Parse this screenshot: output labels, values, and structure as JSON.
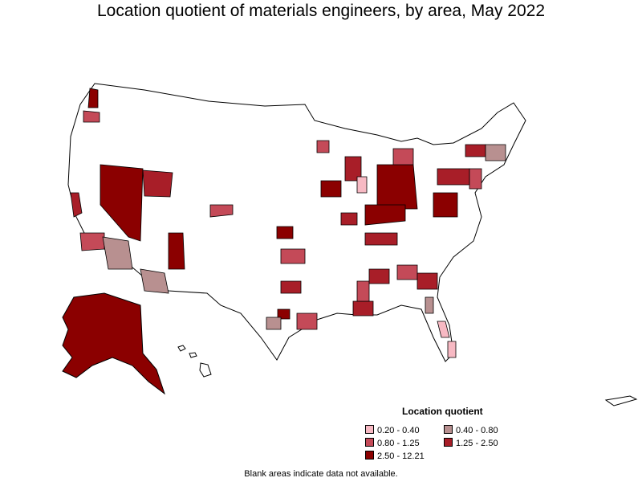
{
  "title": "Location quotient of materials engineers, by area, May 2022",
  "legend": {
    "title": "Location quotient",
    "items": [
      {
        "label": "0.20 - 0.40",
        "color": "#f7b9c3"
      },
      {
        "label": "0.40 - 0.80",
        "color": "#b89090"
      },
      {
        "label": "0.80 - 1.25",
        "color": "#c44a58"
      },
      {
        "label": "1.25 - 2.50",
        "color": "#a81e28"
      },
      {
        "label": "2.50 - 12.21",
        "color": "#8b0000"
      }
    ]
  },
  "footnote": "Blank areas indicate data not available.",
  "colors": {
    "background": "#ffffff",
    "boundary": "#000000",
    "no_data": "#ffffff"
  }
}
